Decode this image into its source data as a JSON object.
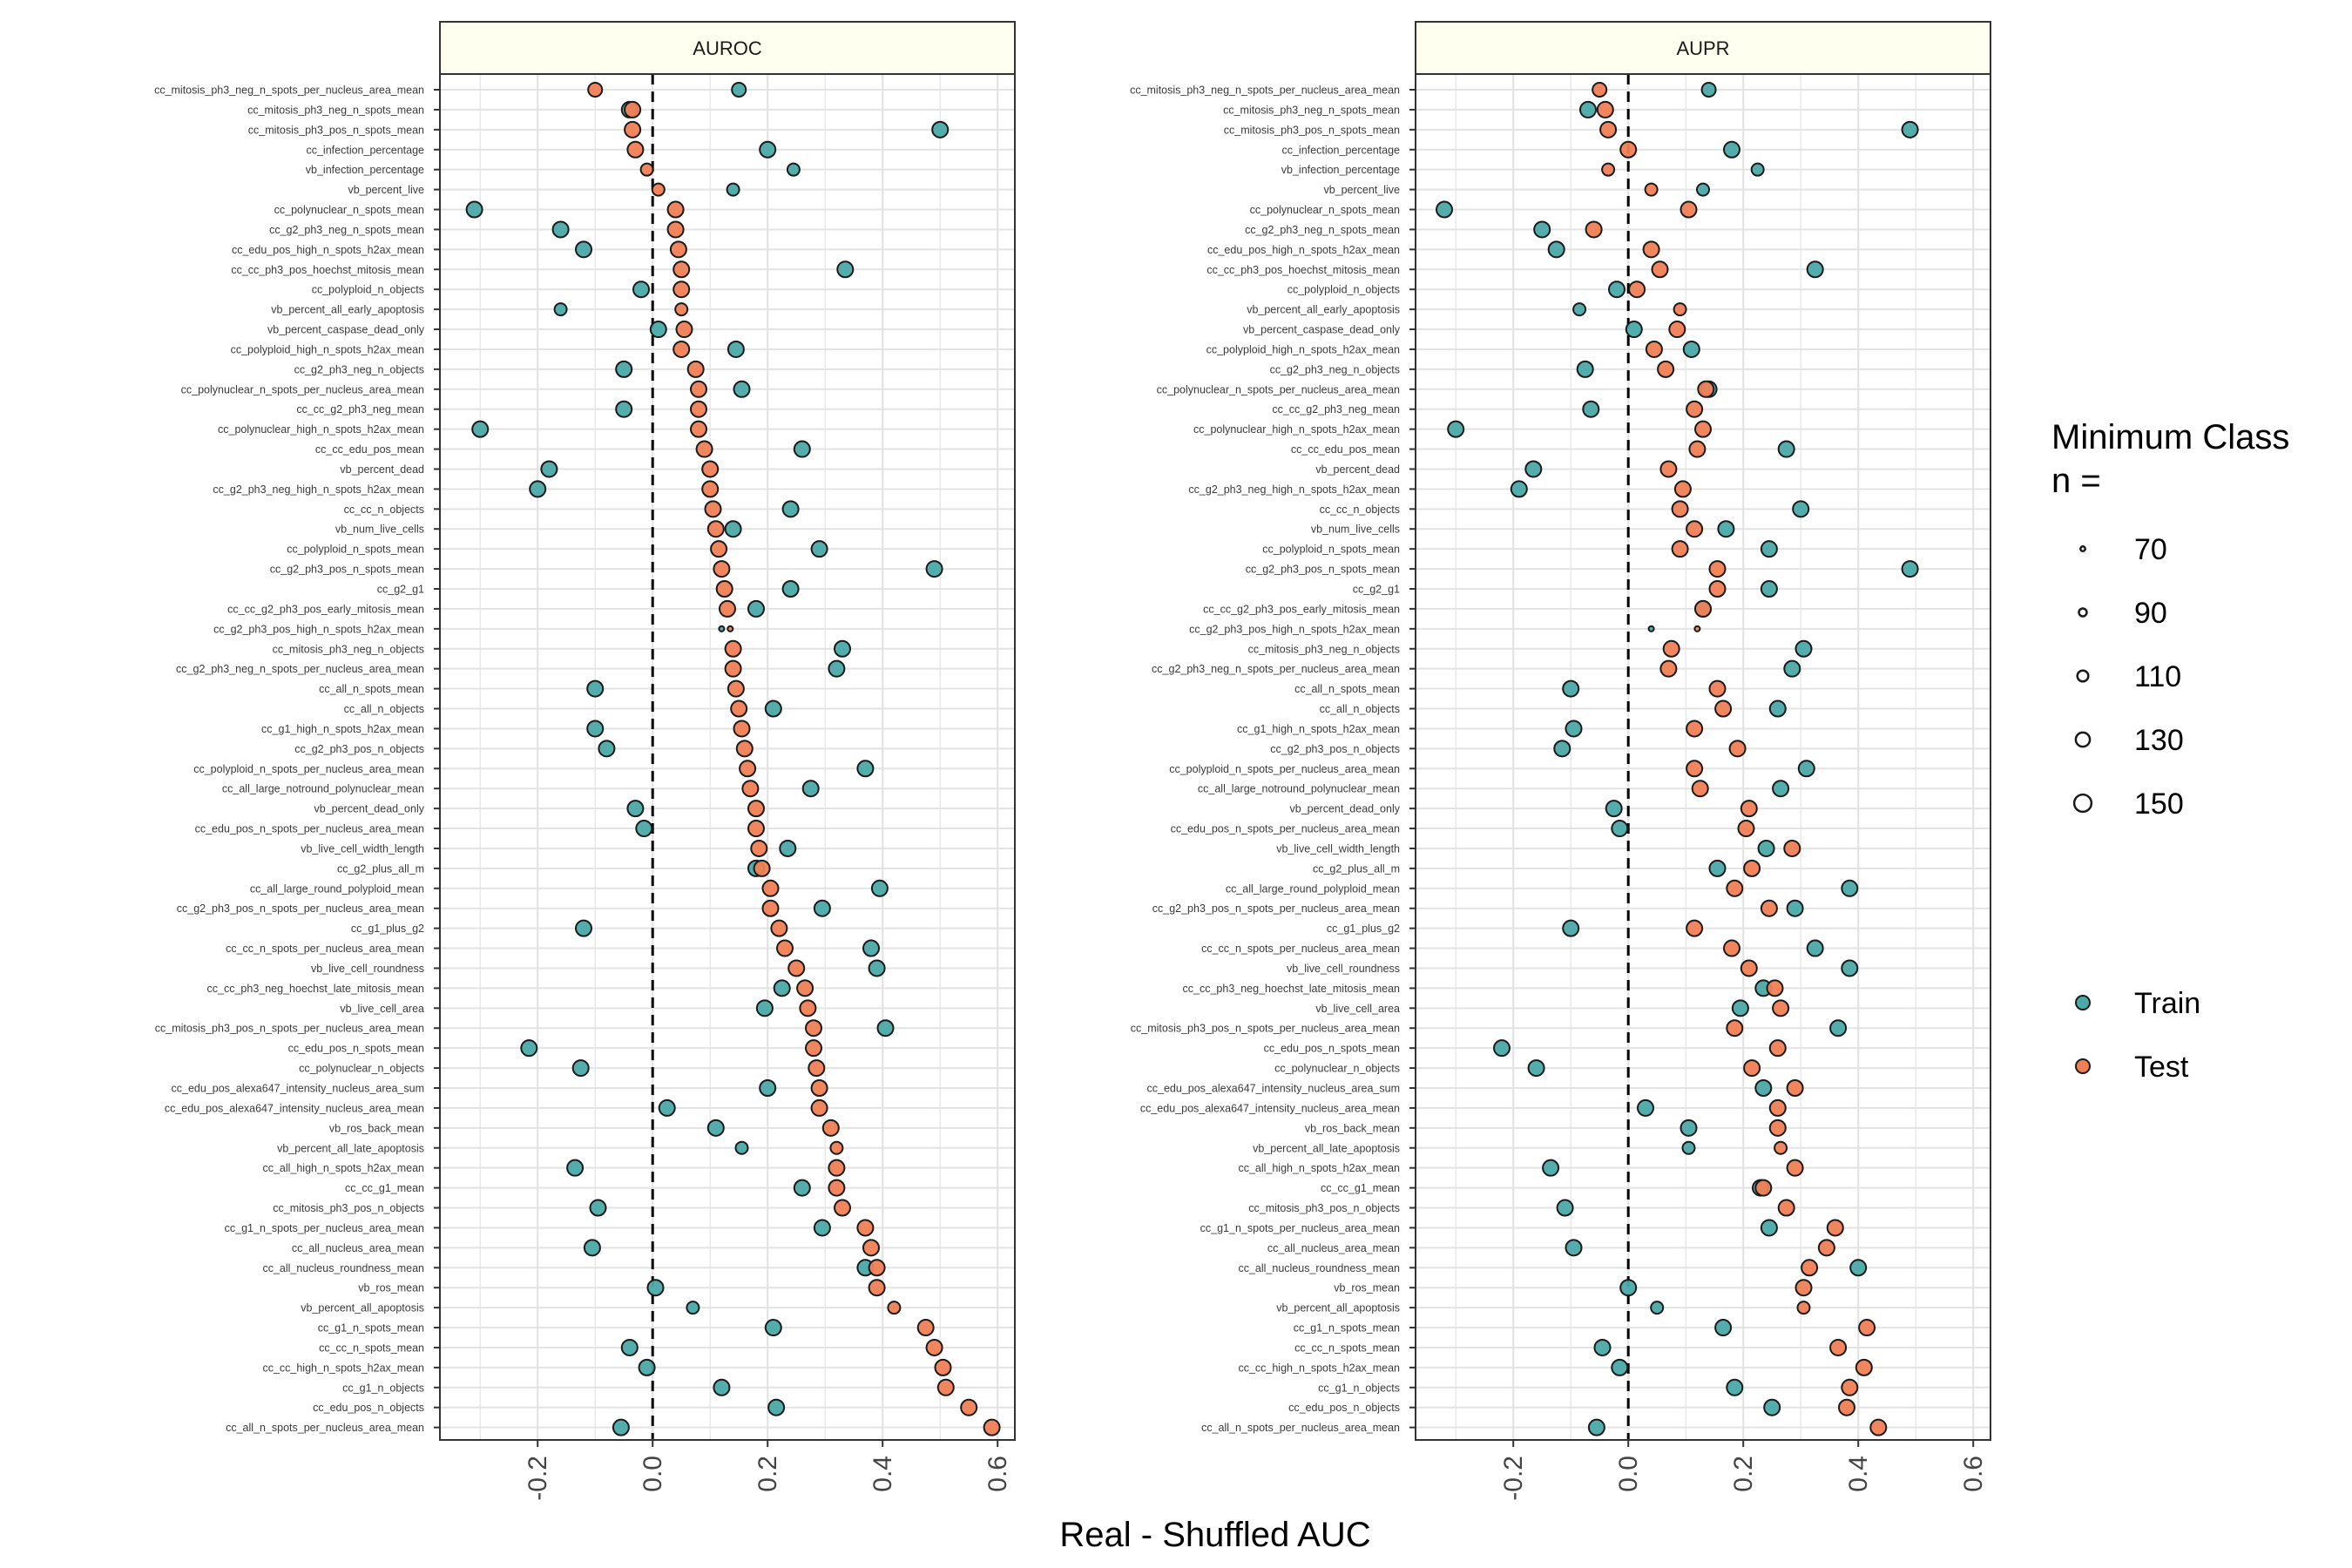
{
  "colors": {
    "train": "#4BA9A9",
    "test": "#F07F55",
    "strip_fill": "#FFFFF0",
    "grid": "#E3E3E3",
    "panel_border": "#333333",
    "point_stroke": "#1a1a1a"
  },
  "chart_data": {
    "type": "scatter",
    "xlabel": "Real - Shuffled AUC",
    "x_ticks": [
      "-0.2",
      "0.0",
      "0.2",
      "0.4",
      "0.6"
    ],
    "x_tick_values": [
      -0.2,
      0.0,
      0.2,
      0.4,
      0.6
    ],
    "xlim": [
      -0.37,
      0.63
    ],
    "reference_line_x": 0,
    "grid": true,
    "legend": {
      "placement": "right",
      "size_title": "Minimum Class\nn =",
      "size_title_line1": "Minimum Class",
      "size_title_line2": "n =",
      "size_values": [
        "70",
        "90",
        "110",
        "130",
        "150"
      ],
      "color_entries": [
        {
          "label": "Train",
          "color": "#4BA9A9"
        },
        {
          "label": "Test",
          "color": "#F07F55"
        }
      ]
    },
    "features": [
      "cc_mitosis_ph3_neg_n_spots_per_nucleus_area_mean",
      "cc_mitosis_ph3_neg_n_spots_mean",
      "cc_mitosis_ph3_pos_n_spots_mean",
      "cc_infection_percentage",
      "vb_infection_percentage",
      "vb_percent_live",
      "cc_polynuclear_n_spots_mean",
      "cc_g2_ph3_neg_n_spots_mean",
      "cc_edu_pos_high_n_spots_h2ax_mean",
      "cc_cc_ph3_pos_hoechst_mitosis_mean",
      "cc_polyploid_n_objects",
      "vb_percent_all_early_apoptosis",
      "vb_percent_caspase_dead_only",
      "cc_polyploid_high_n_spots_h2ax_mean",
      "cc_g2_ph3_neg_n_objects",
      "cc_polynuclear_n_spots_per_nucleus_area_mean",
      "cc_cc_g2_ph3_neg_mean",
      "cc_polynuclear_high_n_spots_h2ax_mean",
      "cc_cc_edu_pos_mean",
      "vb_percent_dead",
      "cc_g2_ph3_neg_high_n_spots_h2ax_mean",
      "cc_cc_n_objects",
      "vb_num_live_cells",
      "cc_polyploid_n_spots_mean",
      "cc_g2_ph3_pos_n_spots_mean",
      "cc_g2_g1",
      "cc_cc_g2_ph3_pos_early_mitosis_mean",
      "cc_g2_ph3_pos_high_n_spots_h2ax_mean",
      "cc_mitosis_ph3_neg_n_objects",
      "cc_g2_ph3_neg_n_spots_per_nucleus_area_mean",
      "cc_all_n_spots_mean",
      "cc_all_n_objects",
      "cc_g1_high_n_spots_h2ax_mean",
      "cc_g2_ph3_pos_n_objects",
      "cc_polyploid_n_spots_per_nucleus_area_mean",
      "cc_all_large_notround_polynuclear_mean",
      "vb_percent_dead_only",
      "cc_edu_pos_n_spots_per_nucleus_area_mean",
      "vb_live_cell_width_length",
      "cc_g2_plus_all_m",
      "cc_all_large_round_polyploid_mean",
      "cc_g2_ph3_pos_n_spots_per_nucleus_area_mean",
      "cc_g1_plus_g2",
      "cc_cc_n_spots_per_nucleus_area_mean",
      "vb_live_cell_roundness",
      "cc_cc_ph3_neg_hoechst_late_mitosis_mean",
      "vb_live_cell_area",
      "cc_mitosis_ph3_pos_n_spots_per_nucleus_area_mean",
      "cc_edu_pos_n_spots_mean",
      "cc_polynuclear_n_objects",
      "cc_edu_pos_alexa647_intensity_nucleus_area_sum",
      "cc_edu_pos_alexa647_intensity_nucleus_area_mean",
      "vb_ros_back_mean",
      "vb_percent_all_late_apoptosis",
      "cc_all_high_n_spots_h2ax_mean",
      "cc_cc_g1_mean",
      "cc_mitosis_ph3_pos_n_objects",
      "cc_g1_n_spots_per_nucleus_area_mean",
      "cc_all_nucleus_area_mean",
      "cc_all_nucleus_roundness_mean",
      "vb_ros_mean",
      "vb_percent_all_apoptosis",
      "cc_g1_n_spots_mean",
      "cc_cc_n_spots_mean",
      "cc_cc_high_n_spots_h2ax_mean",
      "cc_g1_n_objects",
      "cc_edu_pos_n_objects",
      "cc_all_n_spots_per_nucleus_area_mean"
    ],
    "min_class_n": [
      120,
      130,
      130,
      130,
      110,
      110,
      130,
      130,
      130,
      130,
      130,
      110,
      130,
      130,
      130,
      130,
      130,
      130,
      130,
      130,
      130,
      130,
      130,
      130,
      130,
      130,
      130,
      70,
      130,
      130,
      130,
      130,
      130,
      130,
      130,
      130,
      130,
      130,
      130,
      130,
      130,
      130,
      130,
      130,
      130,
      130,
      130,
      130,
      130,
      130,
      130,
      130,
      130,
      110,
      130,
      130,
      130,
      130,
      130,
      130,
      130,
      110,
      130,
      130,
      130,
      130,
      130,
      130
    ],
    "panels": [
      {
        "title": "AUROC",
        "series": [
          {
            "name": "Train",
            "values": [
              0.15,
              -0.04,
              0.5,
              0.2,
              0.245,
              0.14,
              -0.31,
              -0.16,
              -0.12,
              0.335,
              -0.02,
              -0.16,
              0.01,
              0.145,
              -0.05,
              0.155,
              -0.05,
              -0.3,
              0.26,
              -0.18,
              -0.2,
              0.24,
              0.14,
              0.29,
              0.49,
              0.24,
              0.18,
              0.12,
              0.33,
              0.32,
              -0.1,
              0.21,
              -0.1,
              -0.08,
              0.37,
              0.275,
              -0.03,
              -0.015,
              0.235,
              0.18,
              0.395,
              0.295,
              -0.12,
              0.38,
              0.39,
              0.225,
              0.195,
              0.405,
              -0.215,
              -0.125,
              0.2,
              0.025,
              0.11,
              0.155,
              -0.135,
              0.26,
              -0.095,
              0.295,
              -0.105,
              0.37,
              0.005,
              0.07,
              0.21,
              -0.04,
              -0.01,
              0.12,
              0.215,
              -0.055
            ]
          },
          {
            "name": "Test",
            "values": [
              -0.1,
              -0.035,
              -0.035,
              -0.03,
              -0.01,
              0.01,
              0.04,
              0.04,
              0.045,
              0.05,
              0.05,
              0.05,
              0.055,
              0.05,
              0.075,
              0.08,
              0.08,
              0.08,
              0.09,
              0.1,
              0.1,
              0.105,
              0.11,
              0.115,
              0.12,
              0.125,
              0.13,
              0.135,
              0.14,
              0.14,
              0.145,
              0.15,
              0.155,
              0.16,
              0.165,
              0.17,
              0.18,
              0.18,
              0.185,
              0.19,
              0.205,
              0.205,
              0.22,
              0.23,
              0.25,
              0.265,
              0.27,
              0.28,
              0.28,
              0.285,
              0.29,
              0.29,
              0.31,
              0.32,
              0.32,
              0.32,
              0.33,
              0.37,
              0.38,
              0.39,
              0.39,
              0.42,
              0.475,
              0.49,
              0.505,
              0.51,
              0.55,
              0.59
            ]
          }
        ]
      },
      {
        "title": "AUPR",
        "series": [
          {
            "name": "Train",
            "values": [
              0.14,
              -0.07,
              0.49,
              0.18,
              0.225,
              0.13,
              -0.32,
              -0.15,
              -0.125,
              0.325,
              -0.02,
              -0.085,
              0.01,
              0.11,
              -0.075,
              0.14,
              -0.065,
              -0.3,
              0.275,
              -0.165,
              -0.19,
              0.3,
              0.17,
              0.245,
              0.49,
              0.245,
              0.13,
              0.04,
              0.305,
              0.285,
              -0.1,
              0.26,
              -0.095,
              -0.115,
              0.31,
              0.265,
              -0.025,
              -0.015,
              0.24,
              0.155,
              0.385,
              0.29,
              -0.1,
              0.325,
              0.385,
              0.235,
              0.195,
              0.365,
              -0.22,
              -0.16,
              0.235,
              0.03,
              0.105,
              0.105,
              -0.135,
              0.23,
              -0.11,
              0.245,
              -0.095,
              0.4,
              0.0,
              0.05,
              0.165,
              -0.045,
              -0.015,
              0.185,
              0.25,
              -0.055
            ]
          },
          {
            "name": "Test",
            "values": [
              -0.05,
              -0.04,
              -0.035,
              0.0,
              -0.035,
              0.04,
              0.105,
              -0.06,
              0.04,
              0.055,
              0.015,
              0.09,
              0.085,
              0.045,
              0.065,
              0.135,
              0.115,
              0.13,
              0.12,
              0.07,
              0.095,
              0.09,
              0.115,
              0.09,
              0.155,
              0.155,
              0.13,
              0.12,
              0.075,
              0.07,
              0.155,
              0.165,
              0.115,
              0.19,
              0.115,
              0.125,
              0.21,
              0.205,
              0.285,
              0.215,
              0.185,
              0.245,
              0.115,
              0.18,
              0.21,
              0.255,
              0.265,
              0.185,
              0.26,
              0.215,
              0.29,
              0.26,
              0.26,
              0.265,
              0.29,
              0.235,
              0.275,
              0.36,
              0.345,
              0.315,
              0.305,
              0.305,
              0.415,
              0.365,
              0.41,
              0.385,
              0.38,
              0.435
            ]
          }
        ]
      }
    ]
  }
}
